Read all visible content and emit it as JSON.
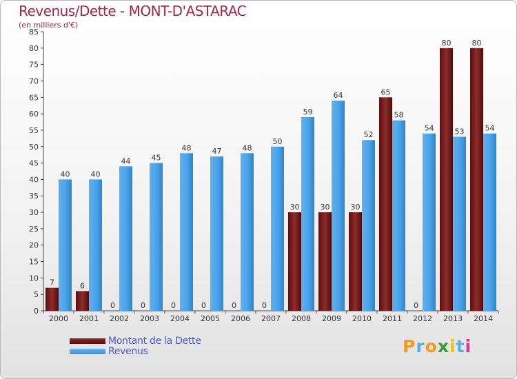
{
  "header": {
    "title": "Revenus/Dette - MONT-D'ASTARAC",
    "subtitle": "(en milliers d'€)"
  },
  "colors": {
    "title": "#a0284a",
    "dette": "#7a1e1e",
    "revenus": "#4aa3e8",
    "legend_text": "#4a5ad8"
  },
  "legend": {
    "items": [
      {
        "label": "Montant de la Dette",
        "color": "#7a1e1e"
      },
      {
        "label": "Revenus",
        "color": "#4aa3e8"
      }
    ],
    "placement": "bottom-left"
  },
  "logo": {
    "letters": [
      "P",
      "r",
      "o",
      "x",
      "i",
      "t",
      "i"
    ],
    "colors": [
      "#f29a1f",
      "#5ab0e0",
      "#f29a1f",
      "#3a9a3a",
      "#e8c21a",
      "#5ab0e0",
      "#e03a8a"
    ]
  },
  "chart_data": {
    "type": "bar",
    "title": "Revenus/Dette - MONT-D'ASTARAC",
    "subtitle": "(en milliers d'€)",
    "categories": [
      "2000",
      "2001",
      "2002",
      "2003",
      "2004",
      "2005",
      "2006",
      "2007",
      "2008",
      "2009",
      "2010",
      "2011",
      "2012",
      "2013",
      "2014"
    ],
    "series": [
      {
        "name": "Montant de la Dette",
        "values": [
          7,
          6,
          0,
          0,
          0,
          0,
          0,
          0,
          30,
          30,
          30,
          65,
          0,
          80,
          80
        ]
      },
      {
        "name": "Revenus",
        "values": [
          40,
          40,
          44,
          45,
          48,
          47,
          48,
          50,
          59,
          64,
          52,
          58,
          54,
          53,
          54
        ]
      }
    ],
    "ylim": [
      0,
      85
    ],
    "yticks": [
      0,
      5,
      10,
      15,
      20,
      25,
      30,
      35,
      40,
      45,
      50,
      55,
      60,
      65,
      70,
      75,
      80,
      85
    ],
    "grid": false,
    "legend": "bottom-left"
  }
}
